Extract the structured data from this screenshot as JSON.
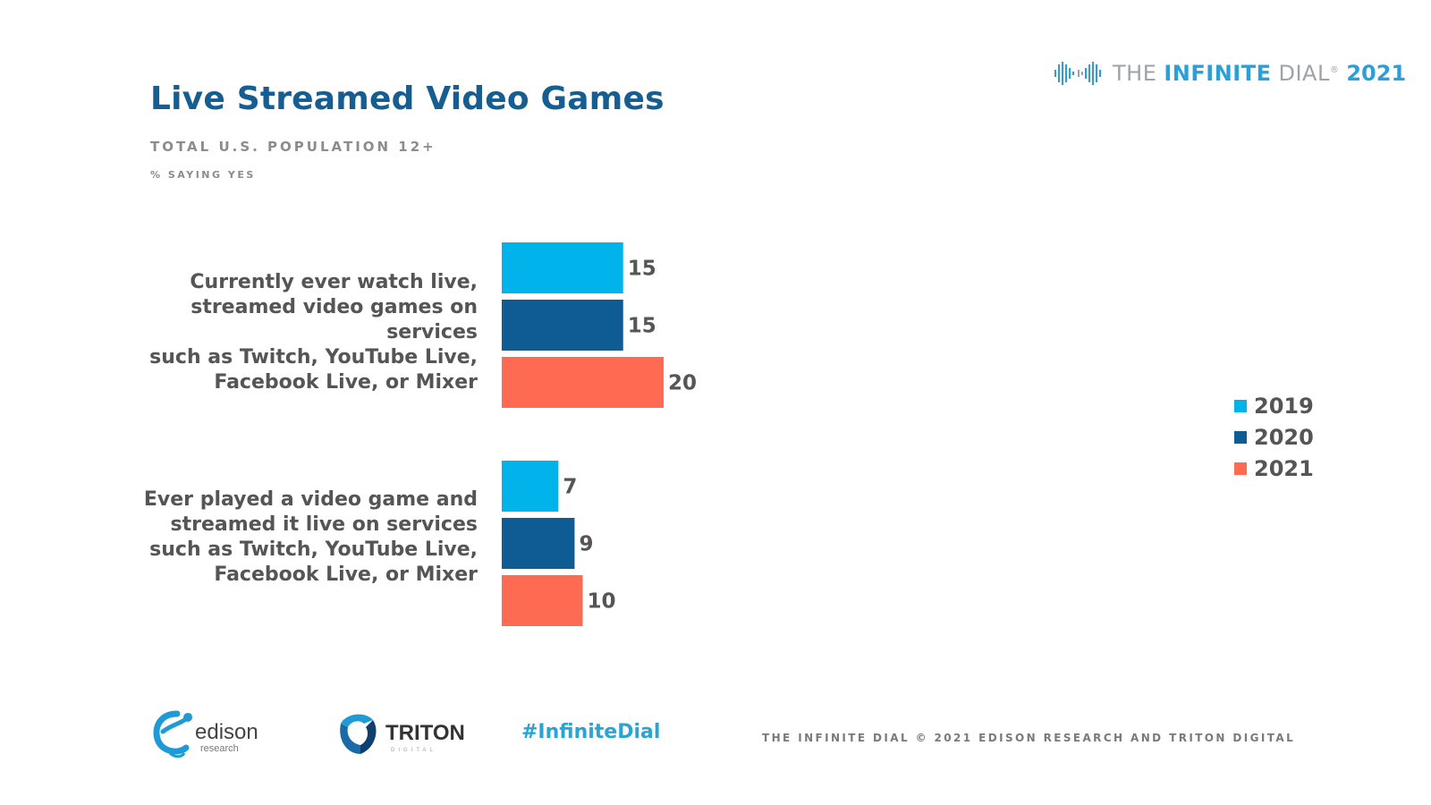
{
  "header": {
    "title": "Live Streamed Video Games",
    "subtitle": "TOTAL U.S. POPULATION 12+",
    "subtitle2": "% SAYING YES"
  },
  "brand": {
    "part1": "THE",
    "part2": "INFINITE",
    "part3": "DIAL",
    "part4": "2021",
    "logo_icon": "infinity-waveform-icon"
  },
  "chart_data": {
    "type": "bar",
    "orientation": "horizontal",
    "categories": [
      "Currently ever watch live,\nstreamed video games on services\nsuch as Twitch, YouTube Live,\nFacebook Live, or Mixer",
      "Ever played a video game and\nstreamed it live on services\nsuch as Twitch, YouTube Live,\nFacebook Live, or Mixer"
    ],
    "series": [
      {
        "name": "2019",
        "color": "#00b4eb",
        "values": [
          15,
          7
        ]
      },
      {
        "name": "2020",
        "color": "#0f5c95",
        "values": [
          15,
          9
        ]
      },
      {
        "name": "2021",
        "color": "#ff6b52",
        "values": [
          20,
          10
        ]
      }
    ],
    "title": "Live Streamed Video Games",
    "xlim": [
      0,
      100
    ],
    "grid": false,
    "data_labels": true,
    "legend_position": "right"
  },
  "footer": {
    "edison_logo_text": "edison",
    "edison_logo_sub": "research",
    "triton_logo_text": "TRITON",
    "triton_logo_sub": "DIGITAL",
    "hashtag": "#InfiniteDial",
    "copyright": "THE INFINITE DIAL    © 2021 EDISON RESEARCH AND TRITON DIGITAL"
  }
}
